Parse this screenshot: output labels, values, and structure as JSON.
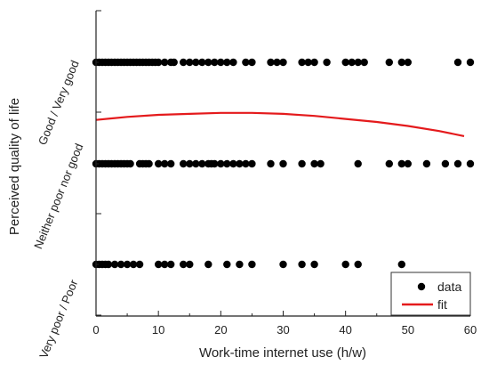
{
  "chart_data": {
    "type": "scatter",
    "title": "",
    "xlabel": "Work-time internet use (h/w)",
    "ylabel": "Perceived quality of life",
    "xlim": [
      0,
      60
    ],
    "x_ticks": [
      "0",
      "10",
      "20",
      "30",
      "40",
      "50",
      "60"
    ],
    "categories": [
      "Very poor / Poor",
      "Neither poor nor good",
      "Good / Very good"
    ],
    "grid": false,
    "legend": {
      "position": "bottom-right",
      "entries": [
        "data",
        "fit"
      ]
    },
    "series": [
      {
        "name": "data",
        "marker": "circle",
        "color": "#000000",
        "points": {
          "Good / Very good": [
            0,
            0.5,
            1,
            1.5,
            2,
            2.5,
            3,
            3.5,
            4,
            4.5,
            5,
            5.5,
            6,
            6.5,
            7,
            7.5,
            8,
            8.5,
            9,
            9.5,
            10,
            11,
            12,
            12.5,
            14,
            15,
            16,
            17,
            18,
            19,
            20,
            21,
            22,
            24,
            25,
            28,
            29,
            30,
            33,
            34,
            35,
            37,
            40,
            41,
            42,
            43,
            47,
            49,
            50,
            58,
            60
          ],
          "Neither poor nor good": [
            0,
            0.5,
            1,
            1.5,
            2,
            2.5,
            3,
            3.5,
            4,
            4.5,
            5,
            5.5,
            7,
            7.5,
            8,
            8.5,
            10,
            11,
            12,
            14,
            15,
            16,
            17,
            18,
            18.5,
            19,
            20,
            21,
            22,
            23,
            24,
            25,
            28,
            30,
            33,
            35,
            36,
            42,
            47,
            49,
            50,
            53,
            56,
            58,
            60
          ],
          "Very poor / Poor": [
            0,
            0.5,
            1,
            1.5,
            2,
            3,
            4,
            5,
            6,
            7,
            10,
            11,
            12,
            14,
            15,
            18,
            21,
            23,
            25,
            30,
            33,
            35,
            40,
            42,
            49
          ]
        }
      },
      {
        "name": "fit",
        "type": "line",
        "color": "#e41a1c",
        "x": [
          0,
          5,
          10,
          15,
          20,
          25,
          30,
          35,
          40,
          45,
          50,
          55,
          59
        ],
        "y": [
          1.43,
          1.46,
          1.48,
          1.49,
          1.5,
          1.5,
          1.49,
          1.47,
          1.44,
          1.41,
          1.37,
          1.32,
          1.27
        ]
      }
    ]
  }
}
